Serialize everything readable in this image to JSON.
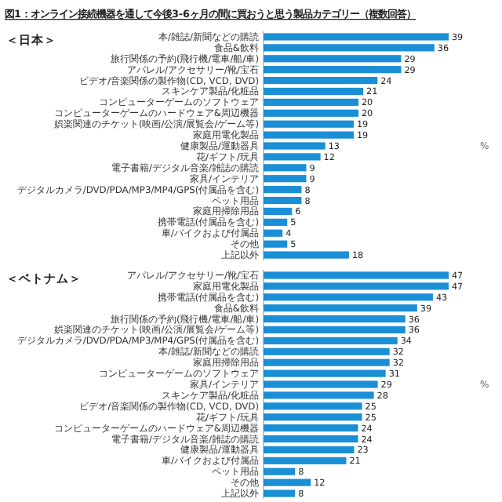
{
  "chart_data": [
    {
      "type": "bar",
      "orientation": "horizontal",
      "title": "図1：オンライン接続機器を通して今後3-6ヶ月の間に買おうと思う製品カテゴリー（複数回答）",
      "subtitle": "＜日本＞",
      "annotations": [
        "%"
      ],
      "data_labels": true,
      "color": "#1a8fd6",
      "categories": [
        "本/雑誌/新聞などの購読",
        "食品&飲料",
        "旅行関係の予約(飛行機/電車/船/車)",
        "アパレル/アクセサリー/靴/宝石",
        "ビデオ/音楽関係の製作物(CD, VCD, DVD)",
        "スキンケア製品/化粧品",
        "コンピューターゲームのソフトウェア",
        "コンピューターゲームのハードウェア&周辺機器",
        "娯楽関連のチケット(映画/公演/展覧会/ゲーム等)",
        "家庭用電化製品",
        "健康製品/運動器具",
        "花/ギフト/玩具",
        "電子書籍/デジタル音楽/雑誌の購読",
        "家具/インテリア",
        "デジタルカメラ/DVD/PDA/MP3/MP4/GPS(付属品を含む)",
        "ペット用品",
        "家庭用掃除用品",
        "携帯電話(付属品を含む)",
        "車/バイクおよび付属品",
        "その他",
        "上記以外"
      ],
      "values": [
        39,
        36,
        29,
        29,
        24,
        21,
        20,
        20,
        19,
        19,
        13,
        12,
        9,
        9,
        8,
        8,
        6,
        5,
        4,
        5,
        18
      ]
    },
    {
      "type": "bar",
      "orientation": "horizontal",
      "subtitle": "＜ベトナム＞",
      "annotations": [
        "%"
      ],
      "data_labels": true,
      "color": "#1a8fd6",
      "categories": [
        "アパレル/アクセサリー/靴/宝石",
        "家庭用電化製品",
        "携帯電話(付属品を含む)",
        "食品&飲料",
        "旅行関係の予約(飛行機/電車/船/車)",
        "娯楽関連のチケット(映画/公演/展覧会/ゲーム等)",
        "デジタルカメラ/DVD/PDA/MP3/MP4/GPS(付属品を含む)",
        "本/雑誌/新聞などの購読",
        "家庭用掃除用品",
        "コンピューターゲームのソフトウェア",
        "家具/インテリア",
        "スキンケア製品/化粧品",
        "ビデオ/音楽関係の製作物(CD, VCD, DVD)",
        "花/ギフト/玩具",
        "コンピューターゲームのハードウェア&周辺機器",
        "電子書籍/デジタル音楽/雑誌の購読",
        "健康製品/運動器具",
        "車/バイクおよび付属品",
        "ペット用品",
        "その他",
        "上記以外"
      ],
      "values": [
        47,
        47,
        43,
        39,
        36,
        36,
        34,
        32,
        32,
        31,
        29,
        28,
        25,
        25,
        24,
        24,
        23,
        21,
        8,
        12,
        8
      ]
    }
  ]
}
